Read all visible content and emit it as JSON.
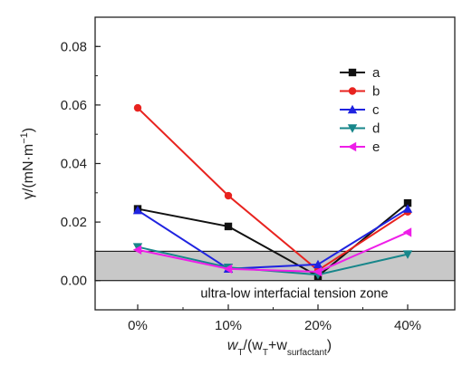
{
  "chart_data": {
    "type": "line",
    "categories": [
      "0%",
      "10%",
      "20%",
      "40%"
    ],
    "ylim": [
      -0.01,
      0.09
    ],
    "yticks": [
      "0.00",
      "0.02",
      "0.04",
      "0.06",
      "0.08"
    ],
    "ytick_values": [
      0,
      0.02,
      0.04,
      0.06,
      0.08
    ],
    "ylabel": {
      "main": "γ/(mN·m",
      "exp": "−1",
      "close": ")"
    },
    "xlabel": {
      "w1": "w",
      "s1": "T",
      "mid": "/(w",
      "s2": "T",
      "plus": "+w",
      "s3": "surfactant",
      "close": ")"
    },
    "legend_position": "top-right",
    "grid": false,
    "zone": {
      "label": "ultra-low interfacial tension zone",
      "ymin": 0,
      "ymax": 0.01,
      "color": "#c8c8c8"
    },
    "series": [
      {
        "name": "a",
        "color": "#111111",
        "marker": "square",
        "values": [
          0.0245,
          0.0185,
          0.0015,
          0.0265
        ]
      },
      {
        "name": "b",
        "color": "#e8231f",
        "marker": "circle",
        "values": [
          0.059,
          0.029,
          0.0035,
          0.0235
        ]
      },
      {
        "name": "c",
        "color": "#1f23e0",
        "marker": "triangle-up",
        "values": [
          0.024,
          0.004,
          0.0055,
          0.0245
        ]
      },
      {
        "name": "d",
        "color": "#17868a",
        "marker": "triangle-down",
        "values": [
          0.0115,
          0.0045,
          0.002,
          0.009
        ]
      },
      {
        "name": "e",
        "color": "#ee1ee8",
        "marker": "triangle-left",
        "values": [
          0.0105,
          0.004,
          0.003,
          0.0165
        ]
      }
    ]
  }
}
